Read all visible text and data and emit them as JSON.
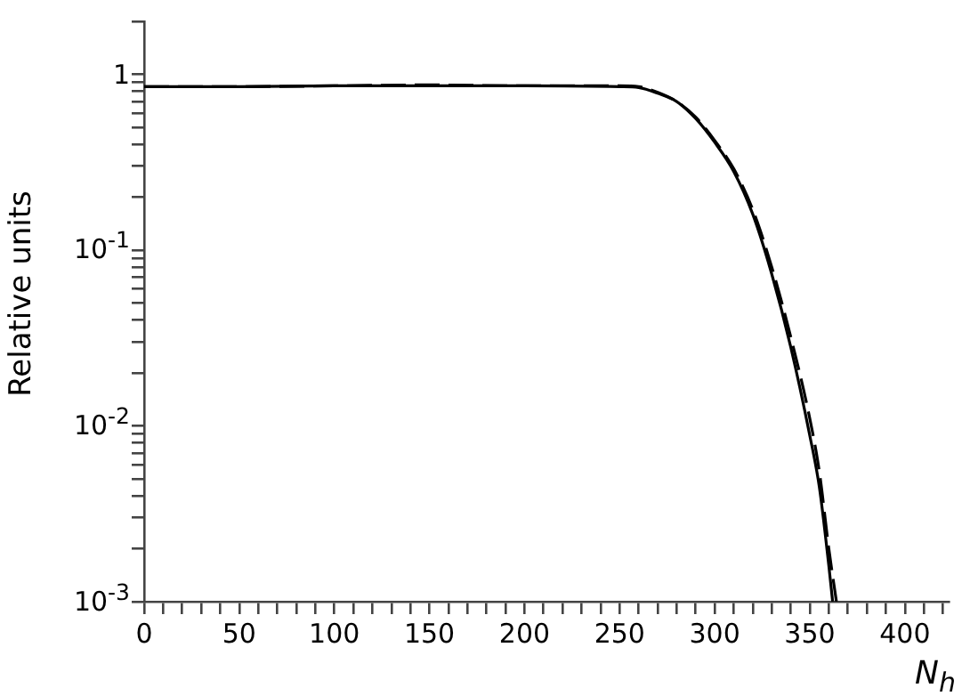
{
  "chart_data": {
    "type": "line",
    "xlabel": "N$_{h}$",
    "ylabel": "Relative units",
    "log": "y",
    "grid": false,
    "legend": false,
    "marker": "none",
    "xlim": [
      0,
      423
    ],
    "ylim": [
      0.001,
      2
    ],
    "xticks": [
      0,
      {
        "value": 10,
        "label": null
      },
      {
        "value": 20,
        "label": null
      },
      {
        "value": 30,
        "label": null
      },
      {
        "value": 40,
        "label": null
      },
      50,
      {
        "value": 60,
        "label": null
      },
      {
        "value": 70,
        "label": null
      },
      {
        "value": 80,
        "label": null
      },
      {
        "value": 90,
        "label": null
      },
      100,
      {
        "value": 110,
        "label": null
      },
      {
        "value": 120,
        "label": null
      },
      {
        "value": 130,
        "label": null
      },
      {
        "value": 140,
        "label": null
      },
      150,
      {
        "value": 160,
        "label": null
      },
      {
        "value": 170,
        "label": null
      },
      {
        "value": 180,
        "label": null
      },
      {
        "value": 190,
        "label": null
      },
      200,
      {
        "value": 210,
        "label": null
      },
      {
        "value": 220,
        "label": null
      },
      {
        "value": 230,
        "label": null
      },
      {
        "value": 240,
        "label": null
      },
      250,
      {
        "value": 260,
        "label": null
      },
      {
        "value": 270,
        "label": null
      },
      {
        "value": 280,
        "label": null
      },
      {
        "value": 290,
        "label": null
      },
      300,
      {
        "value": 310,
        "label": null
      },
      {
        "value": 320,
        "label": null
      },
      {
        "value": 330,
        "label": null
      },
      {
        "value": 340,
        "label": null
      },
      350,
      {
        "value": 360,
        "label": null
      },
      {
        "value": 370,
        "label": null
      },
      {
        "value": 380,
        "label": null
      },
      {
        "value": 390,
        "label": null
      },
      400,
      {
        "value": 410,
        "label": null
      },
      {
        "value": 420,
        "label": null
      }
    ],
    "yticks": [
      {
        "value": 0.001,
        "label": "10$^{-3}$"
      },
      {
        "value": 0.002,
        "label": null
      },
      {
        "value": 0.003,
        "label": null
      },
      {
        "value": 0.004,
        "label": null
      },
      {
        "value": 0.005,
        "label": null
      },
      {
        "value": 0.006,
        "label": null
      },
      {
        "value": 0.007,
        "label": null
      },
      {
        "value": 0.008,
        "label": null
      },
      {
        "value": 0.009,
        "label": null
      },
      {
        "value": 0.01,
        "label": "10$^{-2}$"
      },
      {
        "value": 0.02,
        "label": null
      },
      {
        "value": 0.03,
        "label": null
      },
      {
        "value": 0.04,
        "label": null
      },
      {
        "value": 0.05,
        "label": null
      },
      {
        "value": 0.06,
        "label": null
      },
      {
        "value": 0.07,
        "label": null
      },
      {
        "value": 0.08,
        "label": null
      },
      {
        "value": 0.09,
        "label": null
      },
      {
        "value": 0.1,
        "label": "10$^{-1}$"
      },
      {
        "value": 0.2,
        "label": null
      },
      {
        "value": 0.3,
        "label": null
      },
      {
        "value": 0.4,
        "label": null
      },
      {
        "value": 0.5,
        "label": null
      },
      {
        "value": 0.6,
        "label": null
      },
      {
        "value": 0.7,
        "label": null
      },
      {
        "value": 0.8,
        "label": null
      },
      {
        "value": 0.9,
        "label": null
      },
      1,
      {
        "value": 2,
        "label": null
      }
    ],
    "series": [
      {
        "color": "#000000",
        "line_style": "solid",
        "x": [
          0,
          50,
          100,
          150,
          200,
          250,
          260,
          270,
          280,
          290,
          300,
          310,
          320,
          330,
          340,
          350,
          355,
          360,
          362
        ],
        "values": [
          0.85,
          0.85,
          0.86,
          0.86,
          0.86,
          0.85,
          0.84,
          0.78,
          0.7,
          0.56,
          0.41,
          0.28,
          0.16,
          0.073,
          0.028,
          0.0088,
          0.0045,
          0.0016,
          0.001
        ]
      },
      {
        "color": "#000000",
        "line_style": "dashed",
        "x": [
          0,
          50,
          100,
          150,
          200,
          250,
          260,
          270,
          280,
          290,
          300,
          310,
          320,
          330,
          340,
          350,
          355,
          360,
          364
        ],
        "values": [
          0.85,
          0.85,
          0.86,
          0.87,
          0.86,
          0.86,
          0.85,
          0.79,
          0.7,
          0.57,
          0.42,
          0.29,
          0.17,
          0.08,
          0.032,
          0.011,
          0.0055,
          0.002,
          0.001
        ]
      }
    ]
  }
}
